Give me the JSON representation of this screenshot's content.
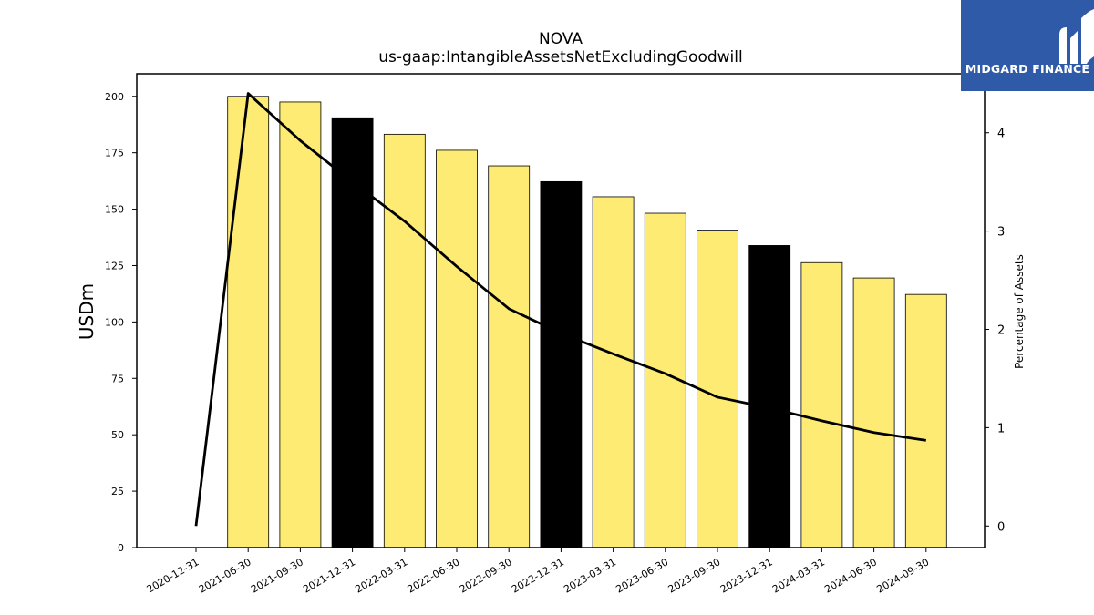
{
  "chart_data": {
    "type": "bar",
    "title": "NOVA",
    "subtitle": "us-gaap:IntangibleAssetsNetExcludingGoodwill",
    "ylabel": "USDm",
    "y2label": "Percentage of Assets",
    "categories": [
      "2020-12-31",
      "2021-06-30",
      "2021-09-30",
      "2021-12-31",
      "2022-03-31",
      "2022-06-30",
      "2022-09-30",
      "2022-12-31",
      "2023-03-31",
      "2023-06-30",
      "2023-09-30",
      "2023-12-31",
      "2024-03-31",
      "2024-06-30",
      "2024-09-30"
    ],
    "series": [
      {
        "kind": "bar",
        "axis": "left",
        "values": [
          0,
          200.0,
          197.5,
          190.5,
          183.2,
          176.1,
          169.2,
          162.2,
          155.5,
          148.2,
          140.7,
          133.9,
          126.3,
          119.5,
          112.2
        ],
        "colors": [
          "#fdeb73",
          "#fdeb73",
          "#fdeb73",
          "#000000",
          "#fdeb73",
          "#fdeb73",
          "#fdeb73",
          "#000000",
          "#fdeb73",
          "#fdeb73",
          "#fdeb73",
          "#000000",
          "#fdeb73",
          "#fdeb73",
          "#fdeb73"
        ]
      },
      {
        "kind": "line",
        "axis": "right",
        "color": "#000000",
        "values": [
          0.0,
          4.4,
          3.92,
          3.5,
          3.1,
          2.64,
          2.21,
          1.96,
          1.75,
          1.55,
          1.31,
          1.2,
          1.07,
          0.95,
          0.87
        ]
      }
    ],
    "ylim": [
      0,
      210
    ],
    "y_ticks": [
      0,
      25,
      50,
      75,
      100,
      125,
      150,
      175,
      200
    ],
    "y2lim": [
      -0.22,
      4.6
    ],
    "y2_ticks": [
      0,
      1,
      2,
      3,
      4
    ],
    "grid": false
  },
  "logo": {
    "text": "MIDGARD FINANCE",
    "color": "#2e5aa8"
  }
}
